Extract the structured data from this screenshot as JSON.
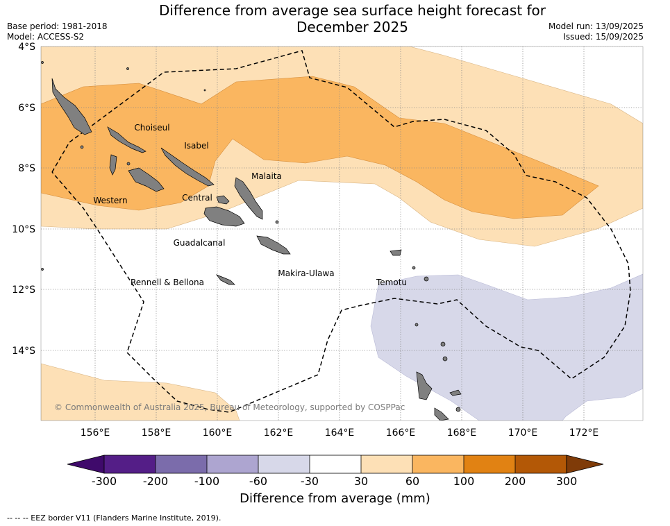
{
  "title_line1": "Difference from average sea surface height forecast for",
  "title_line2": "December 2025",
  "base_period": "Base period: 1981-2018",
  "model": "Model: ACCESS-S2",
  "model_run": "Model run: 13/09/2025",
  "issued": "Issued: 15/09/2025",
  "credit": "© Commonwealth of Australia 2025, Bureau of Meteorology, supported by COSPPac",
  "lat_labels": [
    "4°S",
    "6°S",
    "8°S",
    "10°S",
    "12°S",
    "14°S"
  ],
  "lon_labels": [
    "156°E",
    "158°E",
    "160°E",
    "162°E",
    "164°E",
    "166°E",
    "168°E",
    "170°E",
    "172°E"
  ],
  "provinces": [
    "Choiseul",
    "Isabel",
    "Malaita",
    "Western",
    "Central",
    "Guadalcanal",
    "Makira-Ulawa",
    "Rennell & Bellona",
    "Temotu"
  ],
  "colorbar": {
    "title": "Difference from average (mm)",
    "ticks": [
      "-300",
      "-200",
      "-100",
      "-60",
      "-30",
      "30",
      "60",
      "100",
      "200",
      "300"
    ],
    "colors": [
      "#3f0a6b",
      "#541e87",
      "#7b6cab",
      "#ada5d0",
      "#d7d8e9",
      "#ffffff",
      "#fde0b6",
      "#fab660",
      "#e18213",
      "#b35806",
      "#7f3b08"
    ]
  },
  "footnote": "--  --  -- EEZ border V11 (Flanders Marine Institute, 2019)."
}
